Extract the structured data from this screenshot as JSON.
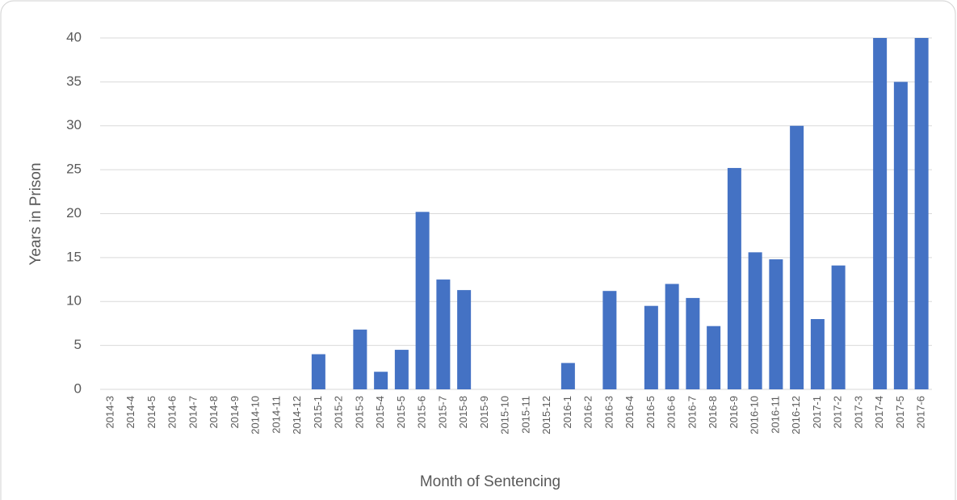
{
  "chart_data": {
    "type": "bar",
    "categories": [
      "2014-3",
      "2014-4",
      "2014-5",
      "2014-6",
      "2014-7",
      "2014-8",
      "2014-9",
      "2014-10",
      "2014-11",
      "2014-12",
      "2015-1",
      "2015-2",
      "2015-3",
      "2015-4",
      "2015-5",
      "2015-6",
      "2015-7",
      "2015-8",
      "2015-9",
      "2015-10",
      "2015-11",
      "2015-12",
      "2016-1",
      "2016-2",
      "2016-3",
      "2016-4",
      "2016-5",
      "2016-6",
      "2016-7",
      "2016-8",
      "2016-9",
      "2016-10",
      "2016-11",
      "2016-12",
      "2017-1",
      "2017-2",
      "2017-3",
      "2017-4",
      "2017-5",
      "2017-6"
    ],
    "values": [
      0,
      0,
      0,
      0,
      0,
      0,
      0,
      0,
      0,
      0,
      4,
      0,
      6.8,
      2,
      4.5,
      20.2,
      12.5,
      11.3,
      0,
      0,
      0,
      0,
      3,
      0,
      11.2,
      0,
      9.5,
      12,
      10.4,
      7.2,
      25.2,
      15.6,
      14.8,
      30,
      8,
      14.1,
      0,
      40,
      35,
      40
    ],
    "color": "#4472c4",
    "ylim": [
      0,
      40
    ],
    "yticks": [
      0,
      5,
      10,
      15,
      20,
      25,
      30,
      35,
      40
    ],
    "grid": true,
    "ylabel": "Years in Prison",
    "xlabel": "Month of Sentencing"
  }
}
